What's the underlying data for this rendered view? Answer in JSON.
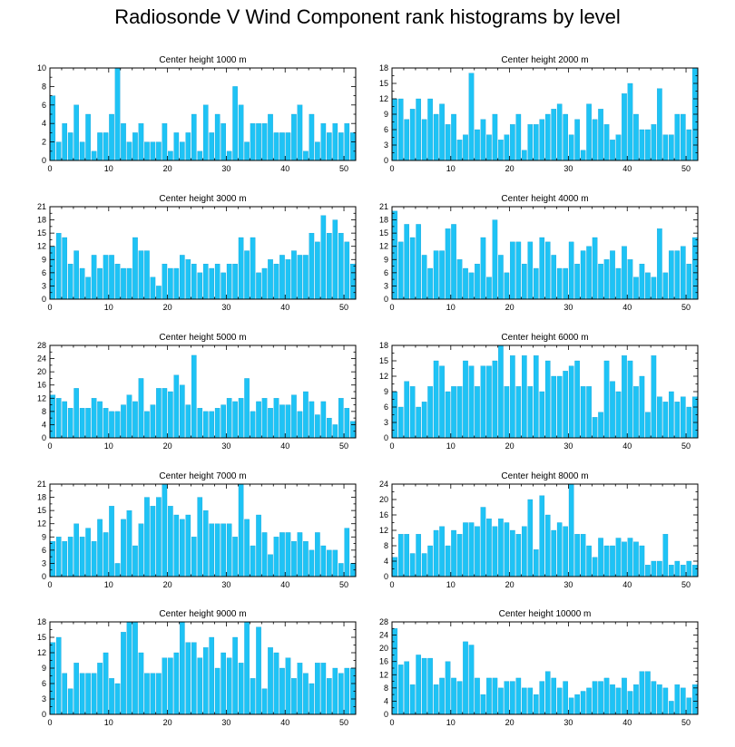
{
  "title": "Radiosonde V Wind Component rank histograms by level",
  "colors": {
    "bar": "#1EC3F5",
    "bar_edge": "#0A9AD2",
    "axis": "#000000",
    "background": "#FFFFFF"
  },
  "chart_data": [
    {
      "type": "bar",
      "title": "Center height 1000 m",
      "xlim": [
        0,
        52
      ],
      "ylim": [
        0,
        10
      ],
      "xticks": [
        0,
        10,
        20,
        30,
        40,
        50
      ],
      "yticks": [
        0,
        2,
        4,
        6,
        8,
        10
      ],
      "values": [
        7,
        2,
        4,
        3,
        6,
        2,
        5,
        1,
        3,
        3,
        5,
        10,
        4,
        2,
        3,
        4,
        2,
        2,
        2,
        4,
        1,
        3,
        2,
        3,
        5,
        1,
        6,
        3,
        5,
        4,
        1,
        8,
        6,
        2,
        4,
        4,
        4,
        5,
        3,
        3,
        3,
        5,
        6,
        1,
        5,
        2,
        4,
        3,
        4,
        3,
        4,
        3
      ]
    },
    {
      "type": "bar",
      "title": "Center height 2000 m",
      "xlim": [
        0,
        52
      ],
      "ylim": [
        0,
        18
      ],
      "xticks": [
        0,
        10,
        20,
        30,
        40,
        50
      ],
      "yticks": [
        0,
        3,
        6,
        9,
        12,
        15,
        18
      ],
      "values": [
        12,
        12,
        8,
        10,
        12,
        8,
        12,
        9,
        11,
        7,
        9,
        4,
        5,
        17,
        6,
        8,
        5,
        9,
        4,
        5,
        7,
        9,
        2,
        7,
        7,
        8,
        9,
        10,
        11,
        9,
        5,
        8,
        2,
        11,
        8,
        10,
        7,
        4,
        5,
        13,
        15,
        9,
        6,
        6,
        7,
        14,
        5,
        5,
        9,
        9,
        6,
        18
      ]
    },
    {
      "type": "bar",
      "title": "Center height 3000 m",
      "xlim": [
        0,
        52
      ],
      "ylim": [
        0,
        21
      ],
      "xticks": [
        0,
        10,
        20,
        30,
        40,
        50
      ],
      "yticks": [
        0,
        3,
        6,
        9,
        12,
        15,
        18,
        21
      ],
      "values": [
        12,
        15,
        14,
        8,
        11,
        7,
        5,
        10,
        7,
        10,
        10,
        8,
        7,
        7,
        14,
        11,
        11,
        5,
        3,
        8,
        7,
        7,
        10,
        9,
        8,
        6,
        8,
        7,
        8,
        6,
        8,
        8,
        14,
        11,
        14,
        6,
        7,
        9,
        8,
        10,
        9,
        11,
        10,
        10,
        15,
        13,
        19,
        15,
        18,
        15,
        13,
        8
      ]
    },
    {
      "type": "bar",
      "title": "Center height 4000 m",
      "xlim": [
        0,
        52
      ],
      "ylim": [
        0,
        21
      ],
      "xticks": [
        0,
        10,
        20,
        30,
        40,
        50
      ],
      "yticks": [
        0,
        3,
        6,
        9,
        12,
        15,
        18,
        21
      ],
      "values": [
        20,
        13,
        17,
        14,
        17,
        10,
        7,
        11,
        11,
        16,
        17,
        9,
        7,
        6,
        8,
        14,
        5,
        18,
        10,
        6,
        13,
        13,
        8,
        13,
        7,
        14,
        13,
        10,
        7,
        7,
        13,
        8,
        11,
        12,
        14,
        8,
        9,
        11,
        7,
        12,
        9,
        5,
        8,
        6,
        5,
        16,
        6,
        11,
        11,
        12,
        8,
        14
      ]
    },
    {
      "type": "bar",
      "title": "Center height 5000 m",
      "xlim": [
        0,
        52
      ],
      "ylim": [
        0,
        28
      ],
      "xticks": [
        0,
        10,
        20,
        30,
        40,
        50
      ],
      "yticks": [
        0,
        4,
        8,
        12,
        16,
        20,
        24,
        28
      ],
      "values": [
        13,
        12,
        11,
        9,
        15,
        9,
        9,
        12,
        11,
        9,
        8,
        8,
        10,
        13,
        11,
        18,
        8,
        10,
        15,
        15,
        14,
        19,
        16,
        10,
        25,
        9,
        8,
        8,
        9,
        10,
        12,
        11,
        12,
        18,
        8,
        11,
        12,
        9,
        12,
        10,
        10,
        13,
        8,
        14,
        11,
        7,
        11,
        6,
        4,
        12,
        9,
        5
      ]
    },
    {
      "type": "bar",
      "title": "Center height 6000 m",
      "xlim": [
        0,
        52
      ],
      "ylim": [
        0,
        18
      ],
      "xticks": [
        0,
        10,
        20,
        30,
        40,
        50
      ],
      "yticks": [
        0,
        3,
        6,
        9,
        12,
        15,
        18
      ],
      "values": [
        9,
        6,
        11,
        10,
        6,
        7,
        10,
        15,
        14,
        9,
        10,
        10,
        15,
        14,
        10,
        14,
        14,
        15,
        18,
        10,
        16,
        10,
        16,
        10,
        16,
        9,
        15,
        12,
        12,
        13,
        14,
        15,
        10,
        10,
        4,
        5,
        15,
        11,
        9,
        16,
        15,
        10,
        12,
        5,
        16,
        8,
        7,
        9,
        7,
        8,
        6,
        8
      ]
    },
    {
      "type": "bar",
      "title": "Center height 7000 m",
      "xlim": [
        0,
        52
      ],
      "ylim": [
        0,
        21
      ],
      "xticks": [
        0,
        10,
        20,
        30,
        40,
        50
      ],
      "yticks": [
        0,
        3,
        6,
        9,
        12,
        15,
        18,
        21
      ],
      "values": [
        8,
        9,
        8,
        9,
        12,
        9,
        11,
        8,
        13,
        10,
        16,
        3,
        13,
        15,
        7,
        12,
        18,
        16,
        18,
        21,
        16,
        14,
        13,
        14,
        9,
        18,
        15,
        12,
        12,
        12,
        12,
        9,
        21,
        13,
        7,
        14,
        10,
        5,
        9,
        10,
        10,
        8,
        10,
        8,
        6,
        10,
        7,
        6,
        6,
        3,
        11,
        3
      ]
    },
    {
      "type": "bar",
      "title": "Center height 8000 m",
      "xlim": [
        0,
        52
      ],
      "ylim": [
        0,
        24
      ],
      "xticks": [
        0,
        10,
        20,
        30,
        40,
        50
      ],
      "yticks": [
        0,
        4,
        8,
        12,
        16,
        20,
        24
      ],
      "values": [
        5,
        11,
        11,
        6,
        11,
        6,
        8,
        12,
        13,
        8,
        12,
        11,
        14,
        14,
        13,
        18,
        15,
        13,
        15,
        14,
        12,
        11,
        13,
        20,
        7,
        21,
        16,
        12,
        14,
        13,
        24,
        11,
        11,
        8,
        5,
        10,
        8,
        8,
        10,
        9,
        10,
        9,
        8,
        3,
        4,
        4,
        11,
        3,
        4,
        3,
        4,
        3
      ]
    },
    {
      "type": "bar",
      "title": "Center height 9000 m",
      "xlim": [
        0,
        52
      ],
      "ylim": [
        0,
        18
      ],
      "xticks": [
        0,
        10,
        20,
        30,
        40,
        50
      ],
      "yticks": [
        0,
        3,
        6,
        9,
        12,
        15,
        18
      ],
      "values": [
        14,
        15,
        8,
        5,
        10,
        8,
        8,
        8,
        10,
        12,
        7,
        6,
        16,
        18,
        18,
        12,
        8,
        8,
        8,
        11,
        11,
        12,
        18,
        14,
        14,
        11,
        13,
        15,
        9,
        12,
        11,
        15,
        10,
        18,
        7,
        17,
        5,
        13,
        12,
        9,
        11,
        7,
        10,
        8,
        6,
        10,
        10,
        7,
        9,
        8,
        9,
        9
      ]
    },
    {
      "type": "bar",
      "title": "Center height 10000 m",
      "xlim": [
        0,
        52
      ],
      "ylim": [
        0,
        28
      ],
      "xticks": [
        0,
        10,
        20,
        30,
        40,
        50
      ],
      "yticks": [
        0,
        4,
        8,
        12,
        16,
        20,
        24,
        28
      ],
      "values": [
        26,
        15,
        16,
        9,
        18,
        17,
        17,
        9,
        11,
        16,
        11,
        10,
        22,
        21,
        11,
        6,
        11,
        11,
        8,
        10,
        10,
        11,
        8,
        8,
        6,
        10,
        13,
        11,
        8,
        10,
        5,
        6,
        7,
        8,
        10,
        10,
        11,
        9,
        8,
        11,
        7,
        9,
        13,
        13,
        10,
        9,
        8,
        4,
        9,
        8,
        5,
        9
      ]
    }
  ]
}
